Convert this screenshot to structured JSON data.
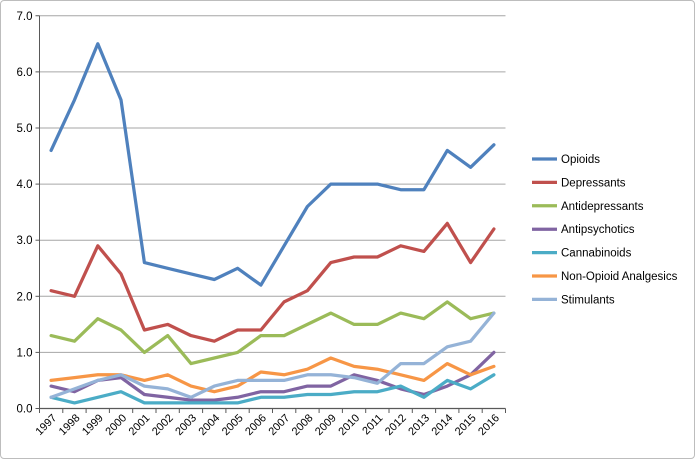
{
  "chart_data": {
    "type": "line",
    "title": "",
    "xlabel": "",
    "ylabel": "",
    "categories": [
      "1997",
      "1998",
      "1999",
      "2000",
      "2001",
      "2002",
      "2003",
      "2004",
      "2005",
      "2006",
      "2007",
      "2008",
      "2009",
      "2010",
      "2011",
      "2012",
      "2013",
      "2014",
      "2015",
      "2016"
    ],
    "series": [
      {
        "name": "Opioids",
        "color": "#4F81BD",
        "values": [
          4.6,
          5.5,
          6.5,
          5.5,
          2.6,
          2.5,
          2.4,
          2.3,
          2.5,
          2.2,
          2.9,
          3.6,
          4.0,
          4.0,
          4.0,
          3.9,
          3.9,
          4.6,
          4.3,
          4.7
        ]
      },
      {
        "name": "Depressants",
        "color": "#C0504D",
        "values": [
          2.1,
          2.0,
          2.9,
          2.4,
          1.4,
          1.5,
          1.3,
          1.2,
          1.4,
          1.4,
          1.9,
          2.1,
          2.6,
          2.7,
          2.7,
          2.9,
          2.8,
          3.3,
          2.6,
          3.2
        ]
      },
      {
        "name": "Antidepressants",
        "color": "#9BBB59",
        "values": [
          1.3,
          1.2,
          1.6,
          1.4,
          1.0,
          1.3,
          0.8,
          0.9,
          1.0,
          1.3,
          1.3,
          1.5,
          1.7,
          1.5,
          1.5,
          1.7,
          1.6,
          1.9,
          1.6,
          1.7
        ]
      },
      {
        "name": "Antipsychotics",
        "color": "#8064A2",
        "values": [
          0.4,
          0.3,
          0.5,
          0.55,
          0.25,
          0.2,
          0.15,
          0.15,
          0.2,
          0.3,
          0.3,
          0.4,
          0.4,
          0.6,
          0.5,
          0.35,
          0.25,
          0.4,
          0.6,
          1.0
        ]
      },
      {
        "name": "Cannabinoids",
        "color": "#4BACC6",
        "values": [
          0.2,
          0.1,
          0.2,
          0.3,
          0.1,
          0.1,
          0.1,
          0.1,
          0.1,
          0.2,
          0.2,
          0.25,
          0.25,
          0.3,
          0.3,
          0.4,
          0.2,
          0.5,
          0.35,
          0.6
        ]
      },
      {
        "name": "Non-Opioid Analgesics",
        "color": "#F79646",
        "values": [
          0.5,
          0.55,
          0.6,
          0.6,
          0.5,
          0.6,
          0.4,
          0.3,
          0.4,
          0.65,
          0.6,
          0.7,
          0.9,
          0.75,
          0.7,
          0.6,
          0.5,
          0.8,
          0.6,
          0.75
        ]
      },
      {
        "name": "Stimulants",
        "color": "#95B3D7",
        "values": [
          0.2,
          0.35,
          0.5,
          0.6,
          0.4,
          0.35,
          0.2,
          0.4,
          0.5,
          0.5,
          0.5,
          0.6,
          0.6,
          0.55,
          0.45,
          0.8,
          0.8,
          1.1,
          1.2,
          1.7
        ]
      }
    ],
    "y_axis": {
      "min": 0,
      "max": 7,
      "step": 1,
      "tick_labels": [
        "0.0",
        "1.0",
        "2.0",
        "3.0",
        "4.0",
        "5.0",
        "6.0",
        "7.0"
      ]
    },
    "x_axis": {
      "label_rotation": -45
    },
    "legend": {
      "position": "right",
      "entries": [
        "Opioids",
        "Depressants",
        "Antidepressants",
        "Antipsychotics",
        "Cannabinoids",
        "Non-Opioid Analgesics",
        "Stimulants"
      ]
    },
    "grid": "horizontal",
    "ylim": [
      0,
      7
    ]
  },
  "style_colors": {
    "gridline": "#A6A6A6",
    "axis_line": "#595959",
    "tick_mark": "#595959",
    "background": "#FFFFFF",
    "frame_border": "#BDBDBD"
  }
}
